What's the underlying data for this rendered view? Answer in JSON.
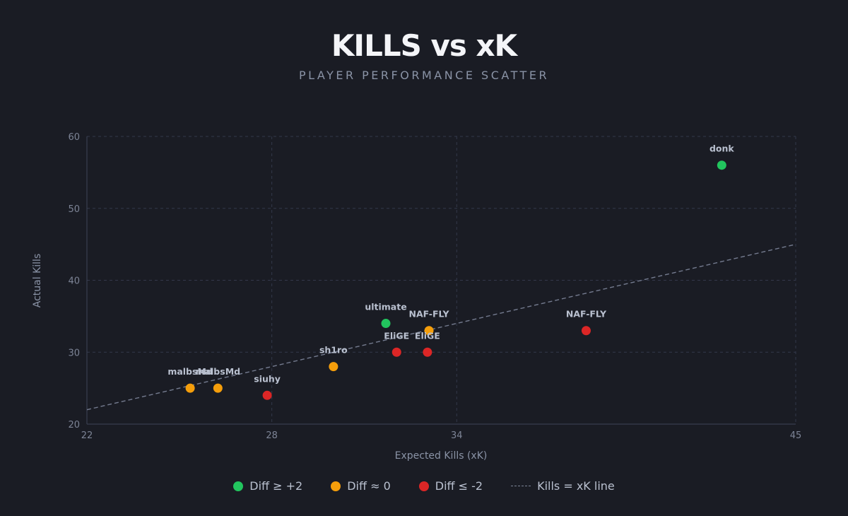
{
  "chart_data": {
    "type": "scatter",
    "title": "KILLS vs xK",
    "subtitle": "PLAYER PERFORMANCE SCATTER",
    "xlabel": "Expected Kills (xK)",
    "ylabel": "Actual Kills",
    "xlim": [
      22,
      45
    ],
    "ylim": [
      20,
      60
    ],
    "xticks": [
      22,
      28,
      34,
      45
    ],
    "yticks": [
      20,
      30,
      40,
      50,
      60
    ],
    "grid": true,
    "reference_line": {
      "label": "Kills = xK line",
      "x": [
        22,
        45
      ],
      "y": [
        22,
        45
      ]
    },
    "categories": [
      {
        "key": "pos",
        "label": "Diff ≥ +2",
        "color": "#22c55e"
      },
      {
        "key": "neu",
        "label": "Diff ≈ 0",
        "color": "#f59e0b"
      },
      {
        "key": "neg",
        "label": "Diff ≤ -2",
        "color": "#dc2626"
      }
    ],
    "points": [
      {
        "label": "donk",
        "x": 42.6,
        "y": 56,
        "cat": "pos"
      },
      {
        "label": "ultimate",
        "x": 31.7,
        "y": 34,
        "cat": "pos"
      },
      {
        "label": "NAF-FLY",
        "x": 33.1,
        "y": 33,
        "cat": "neu"
      },
      {
        "label": "NAF-FLY",
        "x": 38.2,
        "y": 33,
        "cat": "neg"
      },
      {
        "label": "EliGE",
        "x": 32.05,
        "y": 30,
        "cat": "neg"
      },
      {
        "label": "EliGE",
        "x": 33.05,
        "y": 30,
        "cat": "neg"
      },
      {
        "label": "sh1ro",
        "x": 30.0,
        "y": 28,
        "cat": "neu"
      },
      {
        "label": "malbsMd",
        "x": 25.35,
        "y": 25,
        "cat": "neu"
      },
      {
        "label": "malbsMd",
        "x": 26.25,
        "y": 25,
        "cat": "neu"
      },
      {
        "label": "siuhy",
        "x": 27.85,
        "y": 24,
        "cat": "neg"
      }
    ]
  }
}
